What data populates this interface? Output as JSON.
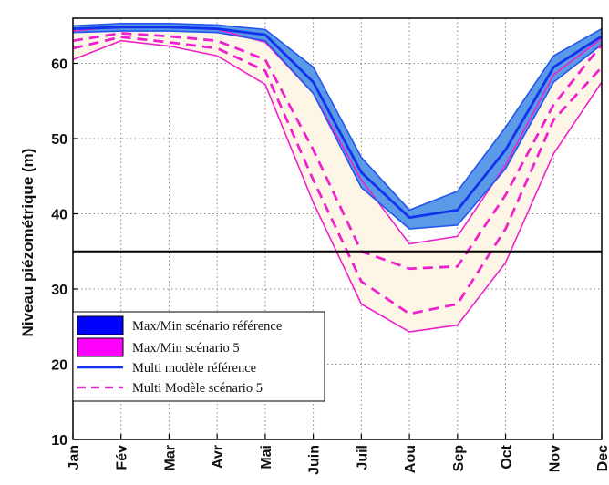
{
  "chart_data": {
    "type": "line",
    "ylabel": "Niveau piézométrique (m)",
    "categories": [
      "Jan",
      "Fév",
      "Mar",
      "Avr",
      "Mai",
      "Juin",
      "Juil",
      "Aou",
      "Sep",
      "Oct",
      "Nov",
      "Dec"
    ],
    "ylim": [
      10,
      66
    ],
    "yticks": [
      10,
      20,
      30,
      40,
      50,
      60
    ],
    "grid": true,
    "hline": 35,
    "legend_position": "lower-left",
    "series": [
      {
        "name": "Max/Min scénario référence",
        "kind": "band",
        "color": "#2255ee",
        "fill": "#5a9ae6",
        "upper": [
          65.0,
          65.3,
          65.3,
          65.1,
          64.5,
          59.5,
          47.5,
          40.5,
          43.0,
          51.5,
          61.0,
          64.6
        ],
        "lower": [
          64.1,
          64.3,
          64.3,
          64.1,
          63.0,
          56.0,
          43.5,
          38.0,
          38.5,
          46.0,
          57.5,
          62.5
        ]
      },
      {
        "name": "Max/Min scénario 5",
        "kind": "band",
        "color": "#ee22cc",
        "fill": "#fdf6e6",
        "upper": [
          64.3,
          64.9,
          64.8,
          64.5,
          62.8,
          56.0,
          44.5,
          36.0,
          37.0,
          46.5,
          58.5,
          63.3
        ],
        "lower": [
          60.5,
          63.0,
          62.3,
          61.0,
          57.2,
          41.5,
          28.0,
          24.3,
          25.2,
          33.5,
          48.0,
          57.5
        ]
      },
      {
        "name": "Multi modèle référence",
        "kind": "line",
        "color": "#1133ee",
        "values": [
          64.6,
          64.8,
          64.8,
          64.6,
          63.8,
          57.5,
          45.5,
          39.5,
          40.5,
          48.5,
          59.5,
          63.6
        ]
      },
      {
        "name": "Multi Modèle scénario 5",
        "kind": "dashed",
        "color": "#ee22cc",
        "values": [
          63.0,
          64.0,
          63.6,
          63.0,
          60.5,
          48.5,
          35.0,
          32.7,
          33.0,
          42.5,
          54.5,
          62.5
        ]
      },
      {
        "name": "",
        "kind": "dashed",
        "color": "#ee22cc",
        "values": [
          62.0,
          63.5,
          62.8,
          62.0,
          59.0,
          44.5,
          31.0,
          26.7,
          28.0,
          38.0,
          52.5,
          59.5
        ]
      }
    ]
  }
}
